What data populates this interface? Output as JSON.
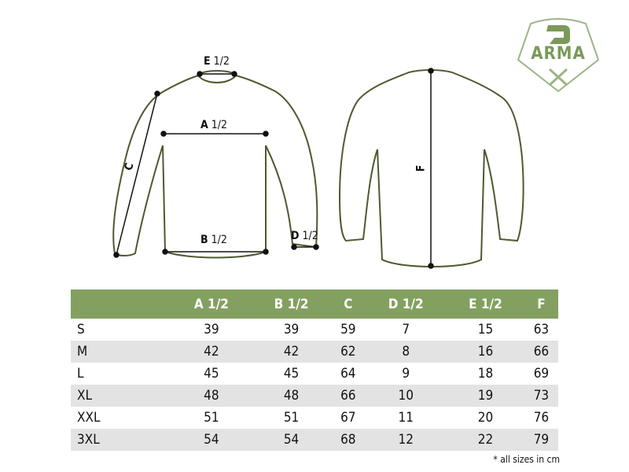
{
  "brand": {
    "logo_text": "ARMA",
    "logo_mark": "D X",
    "color": "#83a060"
  },
  "diagram": {
    "front_labels": {
      "a": "A",
      "a_frac": "1/2",
      "b": "B",
      "b_frac": "1/2",
      "c": "C",
      "d": "D",
      "d_frac": "1/2",
      "e": "E",
      "e_frac": "1/2"
    },
    "back_labels": {
      "f": "F"
    },
    "outline_color": "#4d5a2e"
  },
  "table": {
    "headers": [
      "",
      "A 1/2",
      "B 1/2",
      "C",
      "D 1/2",
      "E 1/2",
      "F"
    ],
    "rows": [
      [
        "S",
        "39",
        "39",
        "59",
        "7",
        "15",
        "63"
      ],
      [
        "M",
        "42",
        "42",
        "62",
        "8",
        "16",
        "66"
      ],
      [
        "L",
        "45",
        "45",
        "64",
        "9",
        "18",
        "69"
      ],
      [
        "XL",
        "48",
        "48",
        "66",
        "10",
        "19",
        "73"
      ],
      [
        "XXL",
        "51",
        "51",
        "67",
        "11",
        "20",
        "76"
      ],
      [
        "3XL",
        "54",
        "54",
        "68",
        "12",
        "22",
        "79"
      ]
    ],
    "header_color": "#83a060",
    "stripe_color": "#e3e3e3"
  },
  "note": "* all sizes in cm"
}
